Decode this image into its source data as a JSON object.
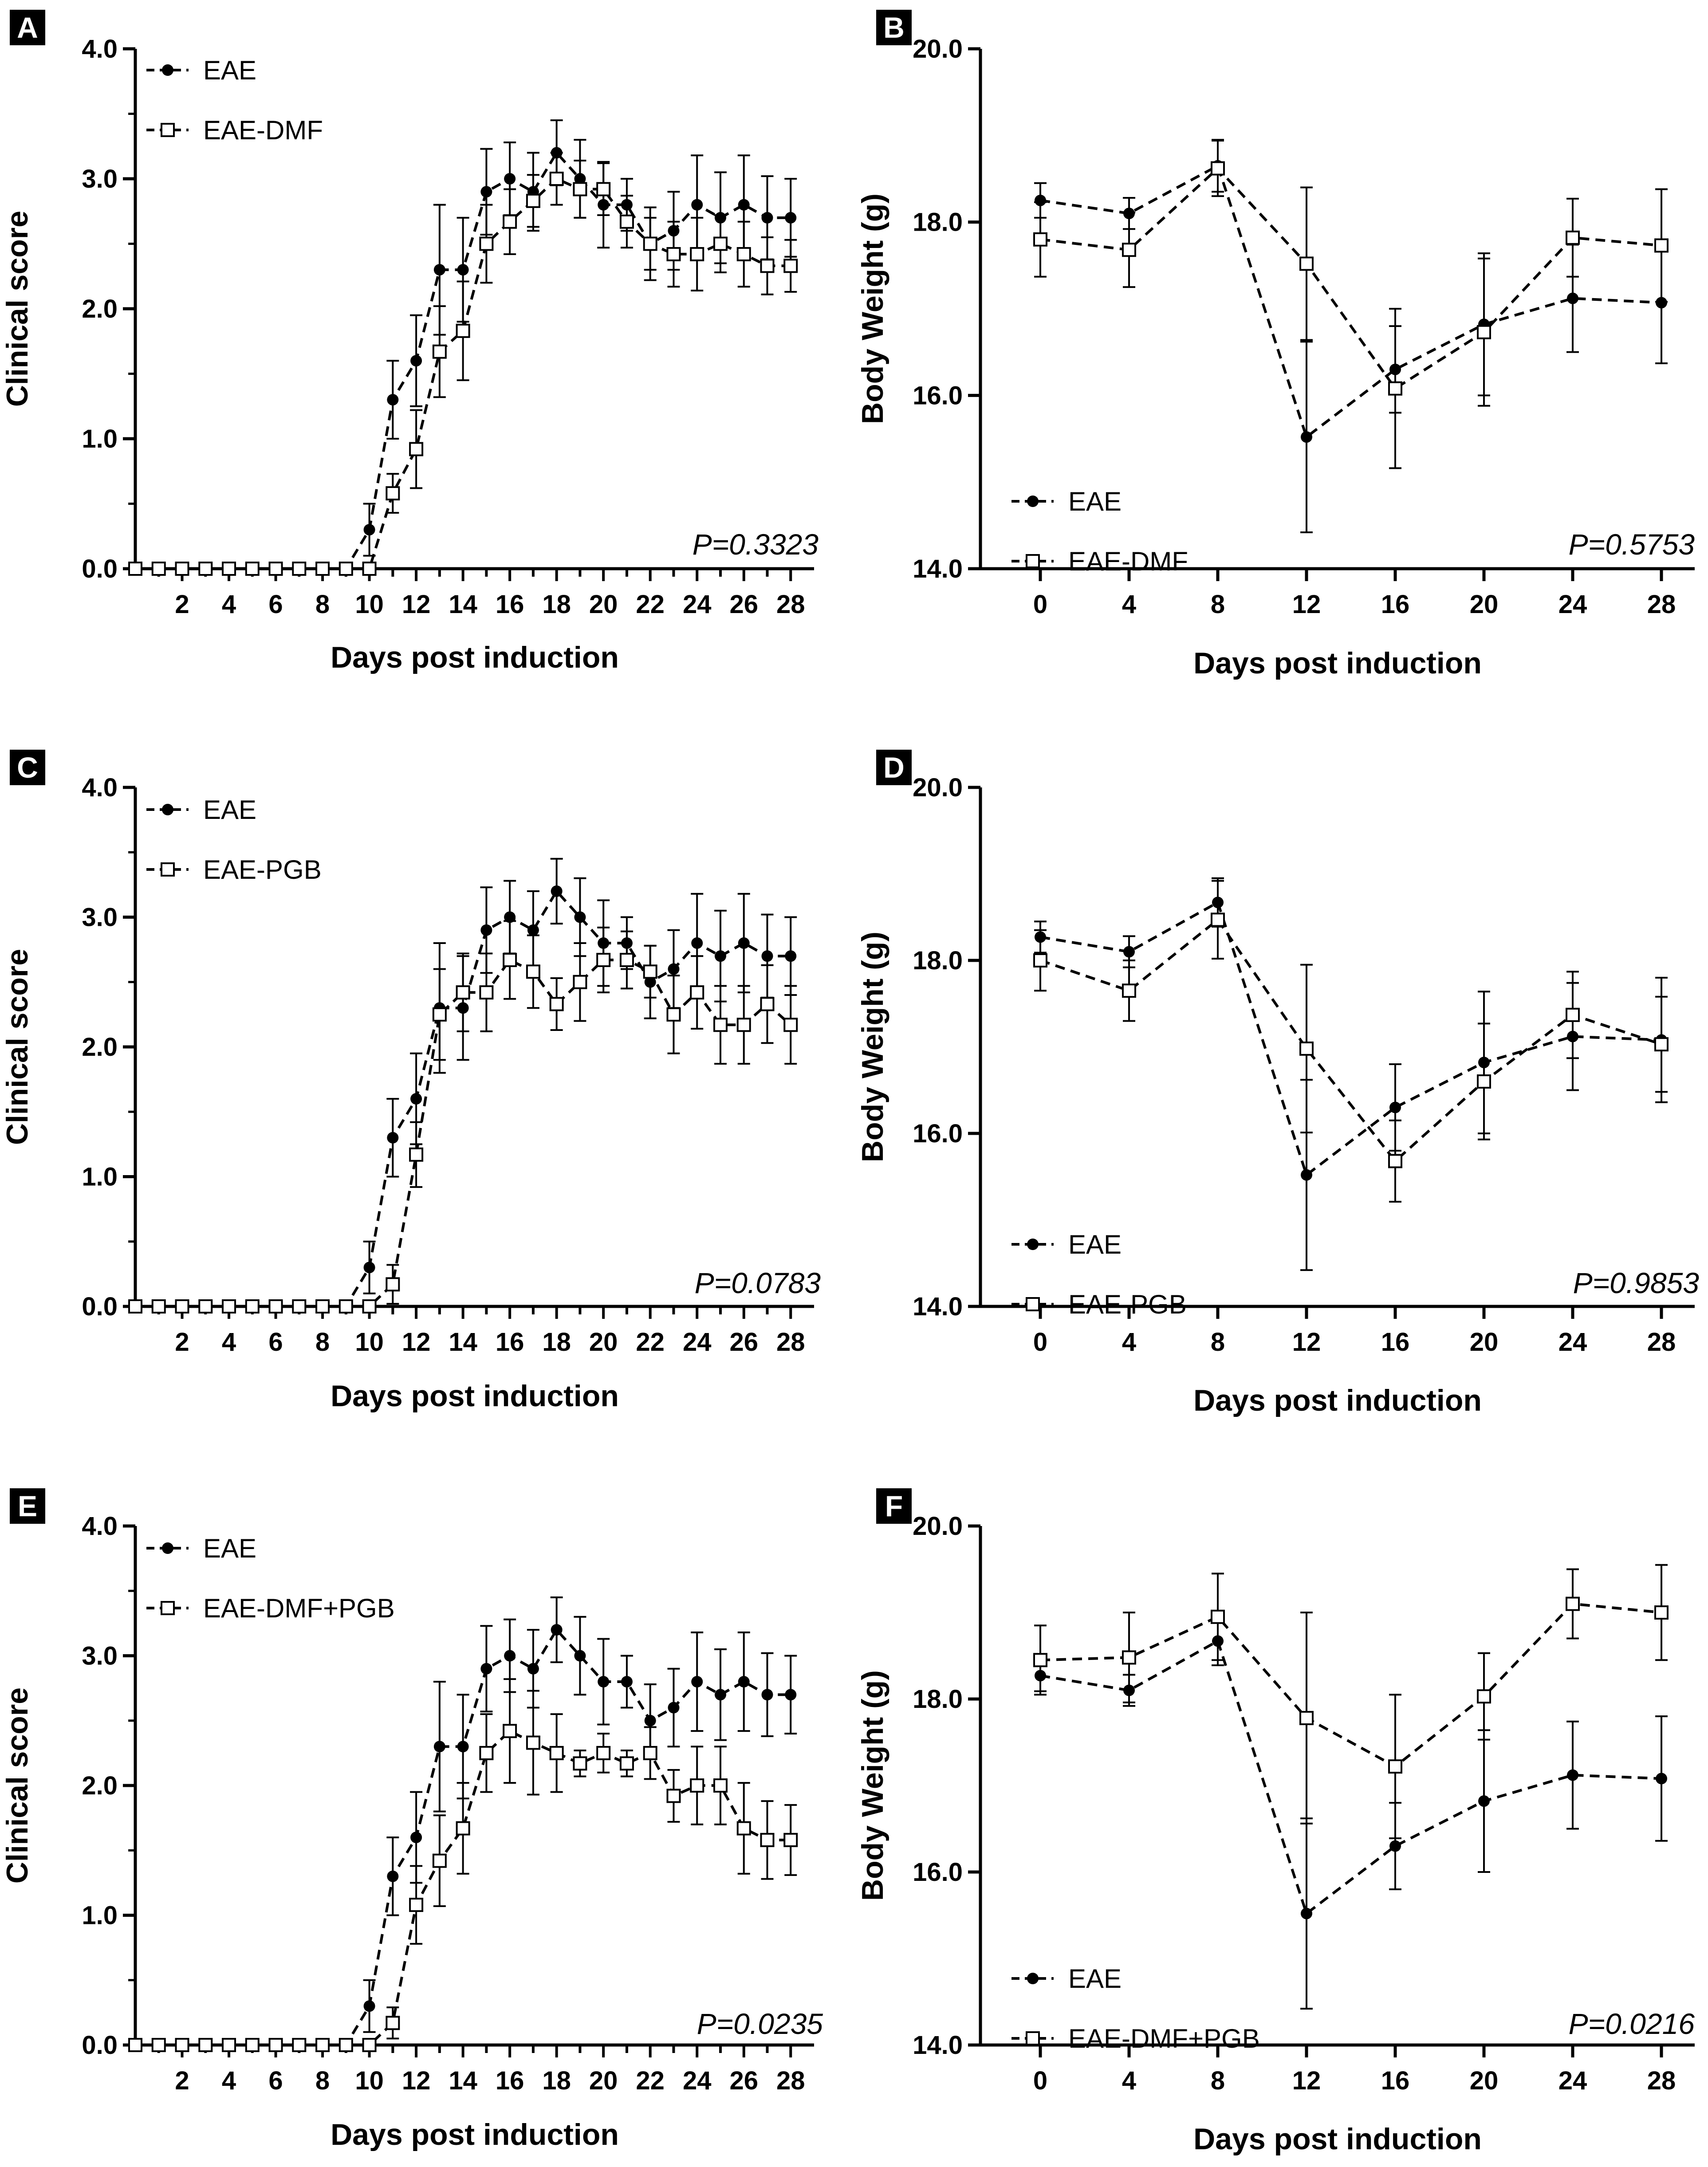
{
  "colors": {
    "line": "#000000",
    "marker_filled": "#000000",
    "marker_open_fill": "#ffffff",
    "label_box": "#000000",
    "label_text": "#ffffff"
  },
  "chart_data": [
    {
      "panel": "A",
      "type": "line",
      "xlabel": "Days post induction",
      "ylabel": "Clinical score",
      "xlim": [
        0,
        29
      ],
      "ylim": [
        0,
        4
      ],
      "xticks": [
        "2",
        "4",
        "6",
        "8",
        "10",
        "12",
        "14",
        "16",
        "18",
        "20",
        "22",
        "24",
        "26",
        "28"
      ],
      "xtick_values": [
        2,
        4,
        6,
        8,
        10,
        12,
        14,
        16,
        18,
        20,
        22,
        24,
        26,
        28
      ],
      "yticks": [
        "0.0",
        "1.0",
        "2.0",
        "3.0",
        "4.0"
      ],
      "ytick_values": [
        0,
        1,
        2,
        3,
        4
      ],
      "annotation": "P=0.3323",
      "legend": [
        "EAE",
        "EAE-DMF"
      ],
      "series": [
        {
          "name": "EAE",
          "marker": "filled-circle",
          "x": [
            0,
            1,
            2,
            3,
            4,
            5,
            6,
            7,
            8,
            9,
            10,
            11,
            12,
            13,
            14,
            15,
            16,
            17,
            18,
            19,
            20,
            21,
            22,
            23,
            24,
            25,
            26,
            27,
            28
          ],
          "values": [
            0,
            0,
            0,
            0,
            0,
            0,
            0,
            0,
            0,
            0,
            0.3,
            1.3,
            1.6,
            2.3,
            2.3,
            2.9,
            3.0,
            2.9,
            3.2,
            3.0,
            2.8,
            2.8,
            2.5,
            2.6,
            2.8,
            2.7,
            2.8,
            2.7,
            2.7
          ],
          "errors": [
            0,
            0,
            0,
            0,
            0,
            0,
            0,
            0,
            0,
            0,
            0.2,
            0.3,
            0.35,
            0.5,
            0.4,
            0.33,
            0.28,
            0.3,
            0.25,
            0.3,
            0.33,
            0.2,
            0.28,
            0.3,
            0.38,
            0.35,
            0.38,
            0.32,
            0.3
          ]
        },
        {
          "name": "EAE-DMF",
          "marker": "open-square",
          "x": [
            0,
            1,
            2,
            3,
            4,
            5,
            6,
            7,
            8,
            9,
            10,
            11,
            12,
            13,
            14,
            15,
            16,
            17,
            18,
            19,
            20,
            21,
            22,
            23,
            24,
            25,
            26,
            27,
            28
          ],
          "values": [
            0,
            0,
            0,
            0,
            0,
            0,
            0,
            0,
            0,
            0,
            0,
            0.58,
            0.92,
            1.67,
            1.83,
            2.5,
            2.67,
            2.83,
            3.0,
            2.92,
            2.92,
            2.67,
            2.5,
            2.42,
            2.42,
            2.5,
            2.42,
            2.33,
            2.33
          ],
          "errors": [
            0,
            0,
            0,
            0,
            0,
            0,
            0,
            0,
            0,
            0,
            0,
            0.15,
            0.3,
            0.35,
            0.38,
            0.3,
            0.25,
            0.2,
            0.2,
            0.22,
            0.2,
            0.2,
            0.2,
            0.25,
            0.28,
            0.22,
            0.25,
            0.22,
            0.2
          ]
        }
      ]
    },
    {
      "panel": "B",
      "type": "line",
      "xlabel": "Days post induction",
      "ylabel": "Body Weight (g)",
      "xlim": [
        -2.7,
        29.5
      ],
      "ylim": [
        14,
        20
      ],
      "xticks": [
        "0",
        "4",
        "8",
        "12",
        "16",
        "20",
        "24",
        "28"
      ],
      "xtick_values": [
        0,
        4,
        8,
        12,
        16,
        20,
        24,
        28
      ],
      "yticks": [
        "14.0",
        "16.0",
        "18.0",
        "20.0"
      ],
      "ytick_values": [
        14,
        16,
        18,
        20
      ],
      "annotation": "P=0.5753",
      "legend": [
        "EAE",
        "EAE-DMF"
      ],
      "series": [
        {
          "name": "EAE",
          "marker": "filled-circle",
          "x": [
            0,
            4,
            8,
            12,
            16,
            20,
            24,
            28
          ],
          "values": [
            18.25,
            18.1,
            18.65,
            15.52,
            16.3,
            16.82,
            17.12,
            17.07
          ],
          "errors": [
            0.2,
            0.18,
            0.3,
            1.1,
            0.5,
            0.82,
            0.62,
            0.7
          ]
        },
        {
          "name": "EAE-DMF",
          "marker": "open-square",
          "x": [
            0,
            4,
            8,
            12,
            16,
            20,
            24,
            28
          ],
          "values": [
            17.8,
            17.68,
            18.62,
            17.52,
            16.08,
            16.73,
            17.82,
            17.73
          ],
          "errors": [
            0.43,
            0.43,
            0.32,
            0.88,
            0.92,
            0.85,
            0.45,
            0.65
          ]
        }
      ]
    },
    {
      "panel": "C",
      "type": "line",
      "xlabel": "Days post induction",
      "ylabel": "Clinical score",
      "xlim": [
        0,
        29
      ],
      "ylim": [
        0,
        4
      ],
      "xticks": [
        "2",
        "4",
        "6",
        "8",
        "10",
        "12",
        "14",
        "16",
        "18",
        "20",
        "22",
        "24",
        "26",
        "28"
      ],
      "xtick_values": [
        2,
        4,
        6,
        8,
        10,
        12,
        14,
        16,
        18,
        20,
        22,
        24,
        26,
        28
      ],
      "yticks": [
        "0.0",
        "1.0",
        "2.0",
        "3.0",
        "4.0"
      ],
      "ytick_values": [
        0,
        1,
        2,
        3,
        4
      ],
      "annotation": "P=0.0783",
      "legend": [
        "EAE",
        "EAE-PGB"
      ],
      "series": [
        {
          "name": "EAE",
          "marker": "filled-circle",
          "x": [
            0,
            1,
            2,
            3,
            4,
            5,
            6,
            7,
            8,
            9,
            10,
            11,
            12,
            13,
            14,
            15,
            16,
            17,
            18,
            19,
            20,
            21,
            22,
            23,
            24,
            25,
            26,
            27,
            28
          ],
          "values": [
            0,
            0,
            0,
            0,
            0,
            0,
            0,
            0,
            0,
            0,
            0.3,
            1.3,
            1.6,
            2.3,
            2.3,
            2.9,
            3.0,
            2.9,
            3.2,
            3.0,
            2.8,
            2.8,
            2.5,
            2.6,
            2.8,
            2.7,
            2.8,
            2.7,
            2.7
          ],
          "errors": [
            0,
            0,
            0,
            0,
            0,
            0,
            0,
            0,
            0,
            0,
            0.2,
            0.3,
            0.35,
            0.5,
            0.4,
            0.33,
            0.28,
            0.3,
            0.25,
            0.3,
            0.33,
            0.2,
            0.28,
            0.3,
            0.38,
            0.35,
            0.38,
            0.32,
            0.3
          ]
        },
        {
          "name": "EAE-PGB",
          "marker": "open-square",
          "x": [
            0,
            1,
            2,
            3,
            4,
            5,
            6,
            7,
            8,
            9,
            10,
            11,
            12,
            13,
            14,
            15,
            16,
            17,
            18,
            19,
            20,
            21,
            22,
            23,
            24,
            25,
            26,
            27,
            28
          ],
          "values": [
            0,
            0,
            0,
            0,
            0,
            0,
            0,
            0,
            0,
            0,
            0,
            0.17,
            1.17,
            2.25,
            2.42,
            2.42,
            2.67,
            2.58,
            2.33,
            2.5,
            2.67,
            2.67,
            2.58,
            2.25,
            2.42,
            2.17,
            2.17,
            2.33,
            2.17
          ],
          "errors": [
            0,
            0,
            0,
            0,
            0,
            0,
            0,
            0,
            0,
            0,
            0,
            0.15,
            0.25,
            0.35,
            0.3,
            0.3,
            0.3,
            0.28,
            0.2,
            0.3,
            0.25,
            0.22,
            0.2,
            0.3,
            0.28,
            0.3,
            0.3,
            0.3,
            0.3
          ]
        }
      ]
    },
    {
      "panel": "D",
      "type": "line",
      "xlabel": "Days post induction",
      "ylabel": "Body Weight (g)",
      "xlim": [
        -2.7,
        29.5
      ],
      "ylim": [
        14,
        20
      ],
      "xticks": [
        "0",
        "4",
        "8",
        "12",
        "16",
        "20",
        "24",
        "28"
      ],
      "xtick_values": [
        0,
        4,
        8,
        12,
        16,
        20,
        24,
        28
      ],
      "yticks": [
        "14.0",
        "16.0",
        "18.0",
        "20.0"
      ],
      "ytick_values": [
        14,
        16,
        18,
        20
      ],
      "annotation": "P=0.9853",
      "legend": [
        "EAE",
        "EAE-PGB"
      ],
      "series": [
        {
          "name": "EAE",
          "marker": "filled-circle",
          "x": [
            0,
            4,
            8,
            12,
            16,
            20,
            24,
            28
          ],
          "values": [
            18.27,
            18.1,
            18.67,
            15.52,
            16.3,
            16.82,
            17.12,
            17.08
          ],
          "errors": [
            0.18,
            0.18,
            0.28,
            1.1,
            0.5,
            0.82,
            0.62,
            0.72
          ]
        },
        {
          "name": "EAE-PGB",
          "marker": "open-square",
          "x": [
            0,
            4,
            8,
            12,
            16,
            20,
            24,
            28
          ],
          "values": [
            18.0,
            17.65,
            18.47,
            16.98,
            15.68,
            16.6,
            17.37,
            17.03
          ],
          "errors": [
            0.35,
            0.35,
            0.45,
            0.97,
            0.47,
            0.67,
            0.5,
            0.55
          ]
        }
      ]
    },
    {
      "panel": "E",
      "type": "line",
      "xlabel": "Days post induction",
      "ylabel": "Clinical score",
      "xlim": [
        0,
        29
      ],
      "ylim": [
        0,
        4
      ],
      "xticks": [
        "2",
        "4",
        "6",
        "8",
        "10",
        "12",
        "14",
        "16",
        "18",
        "20",
        "22",
        "24",
        "26",
        "28"
      ],
      "xtick_values": [
        2,
        4,
        6,
        8,
        10,
        12,
        14,
        16,
        18,
        20,
        22,
        24,
        26,
        28
      ],
      "yticks": [
        "0.0",
        "1.0",
        "2.0",
        "3.0",
        "4.0"
      ],
      "ytick_values": [
        0,
        1,
        2,
        3,
        4
      ],
      "annotation": "P=0.0235",
      "legend": [
        "EAE",
        "EAE-DMF+PGB"
      ],
      "series": [
        {
          "name": "EAE",
          "marker": "filled-circle",
          "x": [
            0,
            1,
            2,
            3,
            4,
            5,
            6,
            7,
            8,
            9,
            10,
            11,
            12,
            13,
            14,
            15,
            16,
            17,
            18,
            19,
            20,
            21,
            22,
            23,
            24,
            25,
            26,
            27,
            28
          ],
          "values": [
            0,
            0,
            0,
            0,
            0,
            0,
            0,
            0,
            0,
            0,
            0.3,
            1.3,
            1.6,
            2.3,
            2.3,
            2.9,
            3.0,
            2.9,
            3.2,
            3.0,
            2.8,
            2.8,
            2.5,
            2.6,
            2.8,
            2.7,
            2.8,
            2.7,
            2.7
          ],
          "errors": [
            0,
            0,
            0,
            0,
            0,
            0,
            0,
            0,
            0,
            0,
            0.2,
            0.3,
            0.35,
            0.5,
            0.4,
            0.33,
            0.28,
            0.3,
            0.25,
            0.3,
            0.33,
            0.2,
            0.28,
            0.3,
            0.38,
            0.35,
            0.38,
            0.32,
            0.3
          ]
        },
        {
          "name": "EAE-DMF+PGB",
          "marker": "open-square",
          "x": [
            0,
            1,
            2,
            3,
            4,
            5,
            6,
            7,
            8,
            9,
            10,
            11,
            12,
            13,
            14,
            15,
            16,
            17,
            18,
            19,
            20,
            21,
            22,
            23,
            24,
            25,
            26,
            27,
            28
          ],
          "values": [
            0,
            0,
            0,
            0,
            0,
            0,
            0,
            0,
            0,
            0,
            0,
            0.17,
            1.08,
            1.42,
            1.67,
            2.25,
            2.42,
            2.33,
            2.25,
            2.17,
            2.25,
            2.17,
            2.25,
            1.92,
            2.0,
            2.0,
            1.67,
            1.58,
            1.58
          ],
          "errors": [
            0,
            0,
            0,
            0,
            0,
            0,
            0,
            0,
            0,
            0,
            0,
            0.12,
            0.3,
            0.35,
            0.35,
            0.3,
            0.4,
            0.4,
            0.3,
            0.1,
            0.15,
            0.1,
            0.2,
            0.2,
            0.3,
            0.3,
            0.35,
            0.3,
            0.27
          ]
        }
      ]
    },
    {
      "panel": "F",
      "type": "line",
      "xlabel": "Days post induction",
      "ylabel": "Body Weight (g)",
      "xlim": [
        -2.7,
        29.5
      ],
      "ylim": [
        14,
        20
      ],
      "xticks": [
        "0",
        "4",
        "8",
        "12",
        "16",
        "20",
        "24",
        "28"
      ],
      "xtick_values": [
        0,
        4,
        8,
        12,
        16,
        20,
        24,
        28
      ],
      "yticks": [
        "14.0",
        "16.0",
        "18.0",
        "20.0"
      ],
      "ytick_values": [
        14,
        16,
        18,
        20
      ],
      "annotation": "P=0.0216",
      "legend": [
        "EAE",
        "EAE-DMF+PGB"
      ],
      "series": [
        {
          "name": "EAE",
          "marker": "filled-circle",
          "x": [
            0,
            4,
            8,
            12,
            16,
            20,
            24,
            28
          ],
          "values": [
            18.27,
            18.1,
            18.67,
            15.52,
            16.3,
            16.82,
            17.12,
            17.08
          ],
          "errors": [
            0.18,
            0.18,
            0.28,
            1.1,
            0.5,
            0.82,
            0.62,
            0.72
          ]
        },
        {
          "name": "EAE-DMF+PGB",
          "marker": "open-square",
          "x": [
            0,
            4,
            8,
            12,
            16,
            20,
            24,
            28
          ],
          "values": [
            18.45,
            18.48,
            18.95,
            17.78,
            17.22,
            18.03,
            19.1,
            19.0
          ],
          "errors": [
            0.4,
            0.52,
            0.5,
            1.22,
            0.83,
            0.5,
            0.4,
            0.55
          ]
        }
      ]
    }
  ]
}
